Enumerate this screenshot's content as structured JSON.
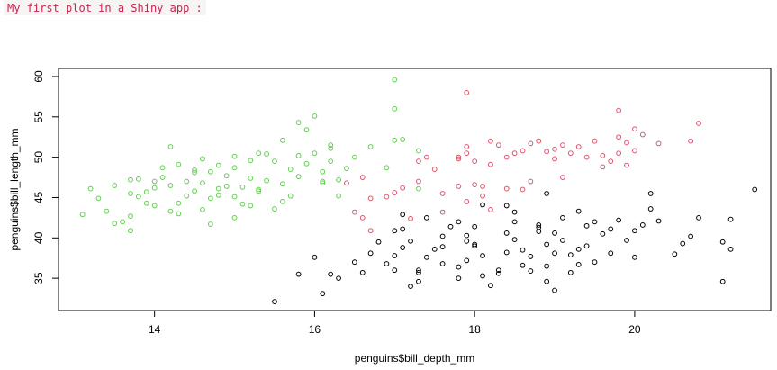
{
  "header": {
    "text": "My first plot in a Shiny app :"
  },
  "chart_data": {
    "type": "scatter",
    "xlabel": "penguins$bill_depth_mm",
    "ylabel": "penguins$bill_length_mm",
    "xlim": [
      12.8,
      21.7
    ],
    "ylim": [
      31,
      61
    ],
    "x_ticks": [
      14,
      16,
      18,
      20
    ],
    "y_ticks": [
      35,
      40,
      45,
      50,
      55,
      60
    ],
    "grid": false,
    "series": [
      {
        "color": "#000000",
        "points": [
          [
            15.5,
            32.1
          ],
          [
            16.1,
            33.1
          ],
          [
            16.2,
            35.5
          ],
          [
            16.3,
            35.0
          ],
          [
            15.8,
            35.5
          ],
          [
            16.0,
            37.6
          ],
          [
            16.6,
            35.7
          ],
          [
            16.5,
            37.0
          ],
          [
            16.7,
            38.1
          ],
          [
            16.8,
            39.5
          ],
          [
            17.0,
            36.0
          ],
          [
            17.0,
            37.8
          ],
          [
            17.1,
            38.8
          ],
          [
            17.2,
            39.6
          ],
          [
            17.3,
            35.7
          ],
          [
            17.3,
            36.0
          ],
          [
            17.4,
            37.6
          ],
          [
            17.5,
            38.6
          ],
          [
            17.6,
            40.2
          ],
          [
            17.0,
            40.9
          ],
          [
            17.1,
            41.1
          ],
          [
            17.2,
            34.0
          ],
          [
            17.3,
            34.6
          ],
          [
            17.8,
            35.0
          ],
          [
            17.8,
            36.4
          ],
          [
            17.9,
            37.2
          ],
          [
            17.6,
            38.9
          ],
          [
            17.9,
            39.6
          ],
          [
            17.9,
            40.3
          ],
          [
            18.0,
            41.4
          ],
          [
            18.0,
            39.2
          ],
          [
            18.1,
            37.8
          ],
          [
            18.1,
            35.3
          ],
          [
            18.2,
            34.1
          ],
          [
            18.3,
            36.0
          ],
          [
            18.4,
            38.2
          ],
          [
            18.4,
            40.6
          ],
          [
            18.5,
            42.0
          ],
          [
            18.5,
            39.8
          ],
          [
            18.6,
            36.6
          ],
          [
            18.6,
            38.5
          ],
          [
            18.7,
            35.9
          ],
          [
            18.7,
            37.7
          ],
          [
            18.8,
            40.8
          ],
          [
            18.8,
            41.3
          ],
          [
            18.9,
            39.2
          ],
          [
            18.9,
            36.5
          ],
          [
            18.9,
            34.6
          ],
          [
            19.0,
            38.1
          ],
          [
            19.0,
            40.6
          ],
          [
            19.1,
            42.5
          ],
          [
            19.1,
            39.7
          ],
          [
            19.2,
            37.9
          ],
          [
            19.2,
            35.7
          ],
          [
            19.3,
            38.6
          ],
          [
            19.3,
            36.7
          ],
          [
            19.4,
            41.5
          ],
          [
            19.4,
            39.0
          ],
          [
            19.5,
            37.0
          ],
          [
            19.6,
            40.5
          ],
          [
            19.7,
            41.1
          ],
          [
            19.7,
            38.1
          ],
          [
            19.8,
            42.2
          ],
          [
            19.9,
            39.7
          ],
          [
            20.0,
            37.6
          ],
          [
            20.0,
            40.9
          ],
          [
            20.1,
            41.6
          ],
          [
            20.3,
            42.1
          ],
          [
            20.5,
            38.0
          ],
          [
            20.6,
            39.3
          ],
          [
            20.7,
            40.2
          ],
          [
            20.8,
            42.5
          ],
          [
            21.1,
            39.5
          ],
          [
            21.1,
            34.6
          ],
          [
            21.2,
            42.3
          ],
          [
            21.2,
            38.6
          ],
          [
            21.5,
            46.0
          ],
          [
            20.2,
            45.5
          ],
          [
            20.2,
            43.6
          ],
          [
            19.5,
            42.0
          ],
          [
            19.3,
            43.3
          ],
          [
            18.8,
            41.6
          ],
          [
            18.5,
            43.2
          ],
          [
            18.1,
            44.1
          ],
          [
            17.4,
            42.5
          ],
          [
            17.8,
            42.0
          ],
          [
            18.9,
            45.5
          ],
          [
            18.0,
            39.0
          ],
          [
            17.6,
            36.8
          ],
          [
            18.3,
            35.6
          ],
          [
            19.0,
            33.5
          ],
          [
            16.9,
            36.8
          ],
          [
            17.7,
            41.4
          ],
          [
            18.4,
            44.0
          ],
          [
            17.1,
            42.9
          ]
        ]
      },
      {
        "color": "#DF536B",
        "points": [
          [
            16.4,
            46.8
          ],
          [
            16.5,
            43.2
          ],
          [
            16.6,
            42.5
          ],
          [
            16.7,
            44.9
          ],
          [
            16.9,
            45.1
          ],
          [
            17.0,
            45.6
          ],
          [
            17.1,
            46.2
          ],
          [
            17.3,
            47.0
          ],
          [
            17.3,
            49.5
          ],
          [
            17.4,
            50.0
          ],
          [
            17.5,
            48.5
          ],
          [
            17.6,
            45.5
          ],
          [
            17.8,
            50.0
          ],
          [
            17.8,
            46.4
          ],
          [
            17.9,
            50.5
          ],
          [
            17.9,
            51.3
          ],
          [
            18.0,
            49.5
          ],
          [
            18.0,
            46.6
          ],
          [
            18.1,
            45.2
          ],
          [
            18.2,
            49.1
          ],
          [
            18.2,
            52.0
          ],
          [
            18.3,
            51.5
          ],
          [
            18.4,
            50.0
          ],
          [
            18.4,
            46.1
          ],
          [
            18.5,
            50.5
          ],
          [
            18.6,
            50.8
          ],
          [
            18.7,
            47.0
          ],
          [
            18.7,
            51.7
          ],
          [
            18.8,
            52.0
          ],
          [
            18.9,
            50.7
          ],
          [
            19.0,
            49.8
          ],
          [
            19.0,
            51.0
          ],
          [
            19.1,
            51.5
          ],
          [
            19.2,
            50.5
          ],
          [
            19.3,
            51.3
          ],
          [
            19.4,
            50.0
          ],
          [
            19.5,
            52.0
          ],
          [
            19.6,
            50.2
          ],
          [
            19.6,
            48.8
          ],
          [
            19.7,
            49.5
          ],
          [
            19.8,
            50.5
          ],
          [
            19.8,
            52.5
          ],
          [
            19.9,
            51.8
          ],
          [
            19.9,
            49.0
          ],
          [
            20.0,
            53.5
          ],
          [
            20.0,
            50.8
          ],
          [
            20.1,
            52.8
          ],
          [
            20.3,
            51.7
          ],
          [
            20.7,
            52.0
          ],
          [
            20.8,
            54.2
          ],
          [
            19.8,
            55.8
          ],
          [
            17.9,
            58.0
          ],
          [
            18.1,
            46.4
          ],
          [
            17.6,
            43.2
          ],
          [
            16.7,
            40.9
          ],
          [
            17.2,
            42.4
          ],
          [
            17.8,
            49.8
          ],
          [
            19.1,
            47.5
          ],
          [
            18.6,
            46.0
          ],
          [
            16.6,
            47.5
          ],
          [
            17.9,
            44.5
          ],
          [
            18.2,
            43.5
          ]
        ]
      },
      {
        "color": "#61D04F",
        "points": [
          [
            13.1,
            42.9
          ],
          [
            13.2,
            46.1
          ],
          [
            13.3,
            44.9
          ],
          [
            13.4,
            43.3
          ],
          [
            13.5,
            46.5
          ],
          [
            13.6,
            42.0
          ],
          [
            13.7,
            47.2
          ],
          [
            13.7,
            45.5
          ],
          [
            13.7,
            42.7
          ],
          [
            13.8,
            45.1
          ],
          [
            13.8,
            47.3
          ],
          [
            13.9,
            45.7
          ],
          [
            14.0,
            44.0
          ],
          [
            14.0,
            46.2
          ],
          [
            14.1,
            47.5
          ],
          [
            14.1,
            48.7
          ],
          [
            14.2,
            43.3
          ],
          [
            14.2,
            46.5
          ],
          [
            14.3,
            49.1
          ],
          [
            14.3,
            44.3
          ],
          [
            14.4,
            47.0
          ],
          [
            14.4,
            45.2
          ],
          [
            14.5,
            45.8
          ],
          [
            14.5,
            48.4
          ],
          [
            14.6,
            46.8
          ],
          [
            14.6,
            43.5
          ],
          [
            14.7,
            44.9
          ],
          [
            14.7,
            48.2
          ],
          [
            14.8,
            49.0
          ],
          [
            14.8,
            45.3
          ],
          [
            14.9,
            46.4
          ],
          [
            14.9,
            47.7
          ],
          [
            15.0,
            45.1
          ],
          [
            15.0,
            48.7
          ],
          [
            15.0,
            50.1
          ],
          [
            15.1,
            46.3
          ],
          [
            15.1,
            44.2
          ],
          [
            15.2,
            49.6
          ],
          [
            15.2,
            47.4
          ],
          [
            15.3,
            45.8
          ],
          [
            15.3,
            50.5
          ],
          [
            15.4,
            47.1
          ],
          [
            15.5,
            43.6
          ],
          [
            15.5,
            49.5
          ],
          [
            15.6,
            46.7
          ],
          [
            15.6,
            52.1
          ],
          [
            15.7,
            48.5
          ],
          [
            15.7,
            45.2
          ],
          [
            15.8,
            47.6
          ],
          [
            15.8,
            50.2
          ],
          [
            15.9,
            49.2
          ],
          [
            15.9,
            53.4
          ],
          [
            16.0,
            50.5
          ],
          [
            16.0,
            55.1
          ],
          [
            16.1,
            48.2
          ],
          [
            16.1,
            46.8
          ],
          [
            16.2,
            49.5
          ],
          [
            16.2,
            51.1
          ],
          [
            16.3,
            47.2
          ],
          [
            16.3,
            45.2
          ],
          [
            16.4,
            48.6
          ],
          [
            16.5,
            50.0
          ],
          [
            16.7,
            51.3
          ],
          [
            16.9,
            48.7
          ],
          [
            17.0,
            56.0
          ],
          [
            17.0,
            59.6
          ],
          [
            17.0,
            52.1
          ],
          [
            17.1,
            52.2
          ],
          [
            17.3,
            50.8
          ],
          [
            17.3,
            46.1
          ],
          [
            16.2,
            51.5
          ],
          [
            15.8,
            54.3
          ],
          [
            14.2,
            51.3
          ],
          [
            14.7,
            41.7
          ],
          [
            13.7,
            40.9
          ],
          [
            13.5,
            41.8
          ],
          [
            14.3,
            43.0
          ],
          [
            15.0,
            42.5
          ],
          [
            15.2,
            44.0
          ],
          [
            15.4,
            50.4
          ],
          [
            14.0,
            47.0
          ],
          [
            14.5,
            48.1
          ],
          [
            15.6,
            44.5
          ],
          [
            16.1,
            47.0
          ],
          [
            13.9,
            44.3
          ],
          [
            14.8,
            46.1
          ],
          [
            15.3,
            46.0
          ],
          [
            14.6,
            49.8
          ]
        ]
      }
    ]
  }
}
